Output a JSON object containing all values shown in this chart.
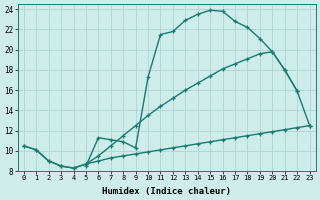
{
  "xlabel": "Humidex (Indice chaleur)",
  "background_color": "#ceecea",
  "grid_color": "#aed4d0",
  "line_color": "#1a7a6e",
  "xlim": [
    -0.5,
    23.5
  ],
  "ylim": [
    8,
    24.5
  ],
  "xticks": [
    0,
    1,
    2,
    3,
    4,
    5,
    6,
    7,
    8,
    9,
    10,
    11,
    12,
    13,
    14,
    15,
    16,
    17,
    18,
    19,
    20,
    21,
    22,
    23
  ],
  "yticks": [
    8,
    10,
    12,
    14,
    16,
    18,
    20,
    22,
    24
  ],
  "curve_bell_x": [
    5,
    6,
    7,
    8,
    9,
    10,
    11,
    12,
    13,
    14,
    15,
    16,
    17,
    18,
    19,
    20,
    21,
    22,
    23
  ],
  "curve_bell_y": [
    8.5,
    11.3,
    11.1,
    10.9,
    10.3,
    17.3,
    21.5,
    21.8,
    22.9,
    23.5,
    23.9,
    23.8,
    22.8,
    22.2,
    21.1,
    19.8,
    18.0,
    15.9,
    12.5
  ],
  "curve_mid_x": [
    0,
    1,
    2,
    3,
    4,
    5,
    6,
    7,
    8,
    9,
    10,
    11,
    12,
    13,
    14,
    15,
    16,
    17,
    18,
    19,
    20,
    21,
    22
  ],
  "curve_mid_y": [
    10.5,
    10.1,
    9.0,
    8.5,
    8.3,
    8.7,
    9.5,
    10.5,
    11.5,
    12.5,
    13.5,
    14.4,
    15.2,
    16.0,
    16.7,
    17.4,
    18.1,
    18.6,
    19.1,
    19.6,
    19.8,
    18.0,
    15.9
  ],
  "curve_flat_x": [
    0,
    1,
    2,
    3,
    4,
    5,
    6,
    7,
    8,
    9,
    10,
    11,
    12,
    13,
    14,
    15,
    16,
    17,
    18,
    19,
    20,
    21,
    22,
    23
  ],
  "curve_flat_y": [
    10.5,
    10.1,
    9.0,
    8.5,
    8.3,
    8.7,
    9.0,
    9.3,
    9.5,
    9.7,
    9.9,
    10.1,
    10.3,
    10.5,
    10.7,
    10.9,
    11.1,
    11.3,
    11.5,
    11.7,
    11.9,
    12.1,
    12.3,
    12.5
  ],
  "marker_size": 3.5,
  "line_width": 1.0
}
